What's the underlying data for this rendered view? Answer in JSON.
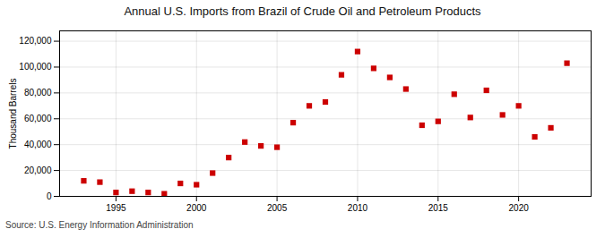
{
  "chart_data": {
    "type": "scatter",
    "title": "Annual U.S. Imports from Brazil of Crude Oil and Petroleum Products",
    "ylabel": "Thousand Barrels",
    "annotations": [
      "Source: U.S. Energy Information Administration"
    ],
    "x": [
      1993,
      1994,
      1995,
      1996,
      1997,
      1998,
      1999,
      2000,
      2001,
      2002,
      2003,
      2004,
      2005,
      2006,
      2007,
      2008,
      2009,
      2010,
      2011,
      2012,
      2013,
      2014,
      2015,
      2016,
      2017,
      2018,
      2019,
      2020,
      2021,
      2022,
      2023
    ],
    "values": [
      12000,
      11000,
      3000,
      4000,
      3000,
      2000,
      10000,
      9000,
      18000,
      30000,
      42000,
      39000,
      38000,
      57000,
      70000,
      73000,
      94000,
      112000,
      99000,
      92000,
      83000,
      55000,
      58000,
      79000,
      61000,
      82000,
      63000,
      70000,
      46000,
      53000,
      103000
    ],
    "color": "#cc0000",
    "marker": "square",
    "xlim": [
      1991.5,
      2024.5
    ],
    "xticks": [
      1995,
      2000,
      2005,
      2010,
      2015,
      2020
    ],
    "ylim": [
      0,
      128000
    ],
    "yticks": [
      0,
      {
        "value": 20000,
        "label": "20,000"
      },
      {
        "value": 40000,
        "label": "40,000"
      },
      {
        "value": 60000,
        "label": "60,000"
      },
      {
        "value": 80000,
        "label": "80,000"
      },
      {
        "value": 100000,
        "label": "100,000"
      },
      {
        "value": 120000,
        "label": "120,000"
      }
    ],
    "grid": true
  }
}
